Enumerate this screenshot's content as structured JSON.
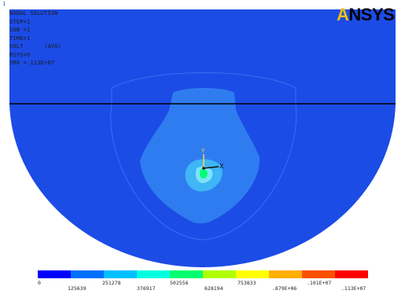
{
  "window_number": "1",
  "logo": {
    "prefix": "A",
    "rest": "NSYS"
  },
  "info_lines": [
    "NODAL SOLUTION",
    "STEP=1",
    "SUB =1",
    "TIME=1",
    "VOLT      (AVG)",
    "RSYS=0",
    "SMX =.113E+07"
  ],
  "triad": {
    "x_label": "X",
    "y_label": "Y"
  },
  "legend": {
    "colors": [
      "#0000ff",
      "#0070ff",
      "#00c0ff",
      "#00ffe0",
      "#00ff70",
      "#b0ff00",
      "#ffff00",
      "#ffb000",
      "#ff5000",
      "#ff0000"
    ],
    "upper_labels": [
      "0",
      "",
      "",
      "",
      "",
      "",
      "",
      "",
      "",
      ""
    ],
    "lower_labels": [
      "",
      "",
      "",
      "",
      "",
      "",
      "",
      "",
      "",
      ""
    ],
    "top_values": [
      "0",
      "251278",
      "502556",
      "753833",
      ".101E+07"
    ],
    "bottom_values": [
      "125639",
      "376917",
      "628194",
      ".879E+06",
      ".113E+07"
    ]
  },
  "colors": {
    "outer_region": "#1c4ce6",
    "mid_region": "#2466ee",
    "inner_region": "#2f86f0",
    "core_region": "#3fb6f5",
    "center_region": "#7de3f7"
  }
}
